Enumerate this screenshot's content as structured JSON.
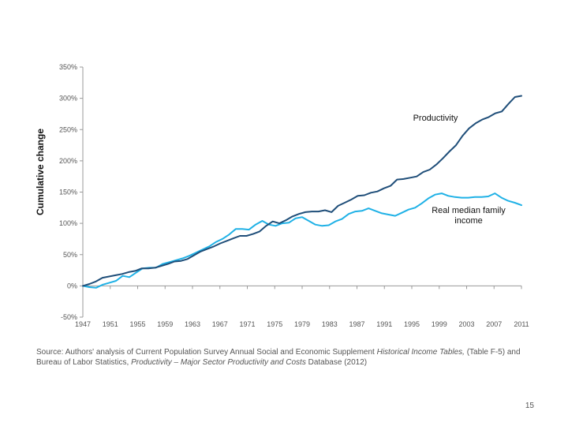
{
  "chart_data": {
    "type": "line",
    "ylabel": "Cumulative change",
    "y_unit": "%",
    "ylim": [
      -50,
      350
    ],
    "y_ticks": [
      -50,
      0,
      50,
      100,
      150,
      200,
      250,
      300,
      350
    ],
    "y_tick_labels": [
      "-50%",
      "0%",
      "50%",
      "100%",
      "150%",
      "200%",
      "250%",
      "300%",
      "350%"
    ],
    "x_tick_labels": [
      "1947",
      "1951",
      "1955",
      "1959",
      "1963",
      "1967",
      "1971",
      "1975",
      "1979",
      "1983",
      "1987",
      "1991",
      "1995",
      "1999",
      "2003",
      "2007",
      "2011"
    ],
    "grid": false,
    "series": [
      {
        "name": "Productivity",
        "label": "Productivity",
        "color": "#1f4e79",
        "values": [
          0,
          3,
          7,
          13,
          15,
          17,
          19,
          22,
          24,
          28,
          28,
          29,
          32,
          35,
          39,
          40,
          43,
          49,
          55,
          59,
          63,
          68,
          72,
          76,
          80,
          80,
          83,
          87,
          96,
          103,
          100,
          105,
          111,
          115,
          118,
          119,
          119,
          121,
          118,
          128,
          133,
          138,
          144,
          145,
          149,
          151,
          156,
          160,
          170,
          171,
          173,
          175,
          182,
          186,
          194,
          204,
          215,
          225,
          240,
          252,
          260,
          266,
          270,
          276,
          279,
          291,
          302,
          304
        ]
      },
      {
        "name": "Real median family income",
        "label_line1": "Real median family",
        "label_line2": "income",
        "color": "#1fb1e6",
        "values": [
          0,
          -2,
          -3,
          2,
          5,
          8,
          16,
          14,
          21,
          28,
          29,
          29,
          35,
          38,
          41,
          44,
          48,
          53,
          58,
          63,
          70,
          75,
          82,
          91,
          91,
          90,
          98,
          104,
          98,
          96,
          100,
          101,
          108,
          110,
          104,
          98,
          96,
          97,
          103,
          107,
          115,
          119,
          120,
          124,
          120,
          116,
          114,
          112,
          117,
          122,
          125,
          132,
          140,
          146,
          148,
          144,
          142,
          141,
          141,
          142,
          142,
          143,
          148,
          141,
          136,
          133,
          129
        ]
      }
    ]
  },
  "footer": {
    "source_prefix": "Source:  Authors' analysis of Current Population Survey Annual Social and Economic Supplement ",
    "source_italic1": "Historical Income Tables,",
    "source_mid1": " (Table F-5) and Bureau of Labor Statistics, ",
    "source_italic2": "Productivity – Major Sector Productivity and Costs",
    "source_suffix": " Database (2012)",
    "page_number": "15"
  }
}
